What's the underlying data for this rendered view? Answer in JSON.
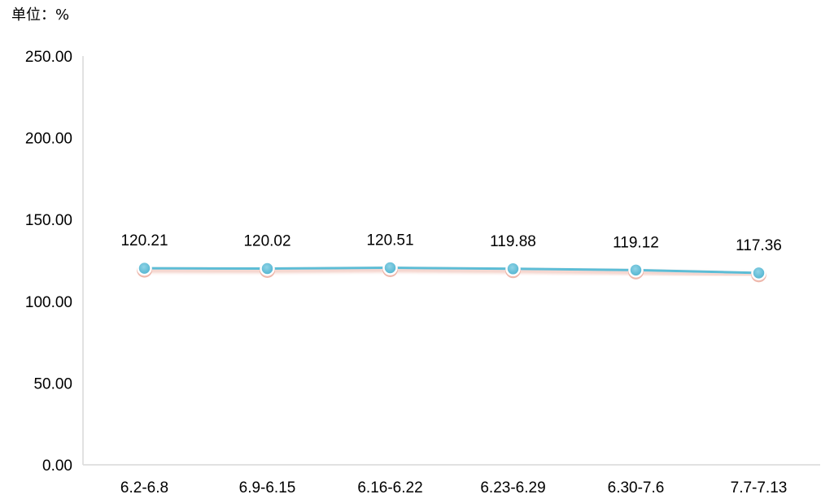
{
  "chart_data": {
    "type": "line",
    "title": "",
    "unit_label": "单位：%",
    "xlabel": "",
    "ylabel": "",
    "categories": [
      "6.2-6.8",
      "6.9-6.15",
      "6.16-6.22",
      "6.23-6.29",
      "6.30-7.6",
      "7.7-7.13"
    ],
    "series": [
      {
        "values": [
          120.21,
          120.02,
          120.51,
          119.88,
          119.12,
          117.36
        ],
        "color": "#5bbdd6"
      }
    ],
    "data_labels": [
      "120.21",
      "120.02",
      "120.51",
      "119.88",
      "119.12",
      "117.36"
    ],
    "ylim": [
      0,
      250
    ],
    "y_ticks": [
      0,
      50,
      100,
      150,
      200,
      250
    ],
    "y_tick_labels": [
      "0.00",
      "50.00",
      "100.00",
      "150.00",
      "200.00",
      "250.00"
    ],
    "grid": false,
    "legend": "none",
    "colors": {
      "line": "#5bbdd6",
      "marker_fill": "#5bbdd6",
      "marker_border": "#ffffff",
      "shadow": "#e8a090",
      "axis": "#d9d9d9"
    }
  }
}
